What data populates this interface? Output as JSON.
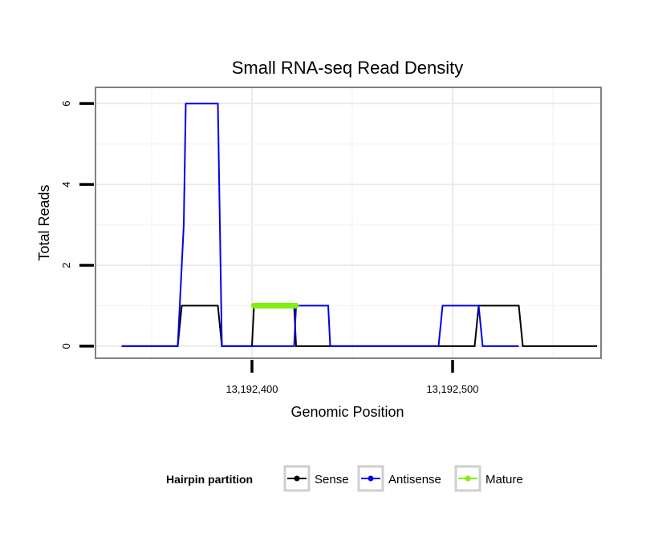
{
  "chart_data": {
    "type": "line",
    "title": "Small RNA-seq Read Density",
    "xlabel": "Genomic Position",
    "ylabel": "Total Reads",
    "xlim": [
      13192322,
      13192574
    ],
    "ylim": [
      -0.3,
      6.4
    ],
    "x_ticks": [
      {
        "value": 13192400,
        "label": "13,192,400"
      },
      {
        "value": 13192500,
        "label": "13,192,500"
      }
    ],
    "y_ticks": [
      {
        "value": 0,
        "label": "0"
      },
      {
        "value": 2,
        "label": "2"
      },
      {
        "value": 4,
        "label": "4"
      },
      {
        "value": 6,
        "label": "6"
      }
    ],
    "grid": true,
    "legend_position": "bottom",
    "legend_title": "Hairpin partition",
    "series": [
      {
        "name": "Sense",
        "color": "#000000",
        "points": [
          [
            13192335,
            0
          ],
          [
            13192363,
            0
          ],
          [
            13192365,
            1
          ],
          [
            13192383,
            1
          ],
          [
            13192385,
            0
          ],
          [
            13192400,
            0
          ],
          [
            13192401,
            1
          ],
          [
            13192421,
            1
          ],
          [
            13192422,
            0
          ],
          [
            13192511,
            0
          ],
          [
            13192513,
            1
          ],
          [
            13192533,
            1
          ],
          [
            13192535,
            0
          ],
          [
            13192572,
            0
          ]
        ]
      },
      {
        "name": "Antisense",
        "color": "#0000ee",
        "points": [
          [
            13192335,
            0
          ],
          [
            13192363,
            0
          ],
          [
            13192365,
            2
          ],
          [
            13192366,
            3
          ],
          [
            13192367,
            6
          ],
          [
            13192383,
            6
          ],
          [
            13192385,
            0
          ],
          [
            13192406,
            0
          ],
          [
            13192421,
            0
          ],
          [
            13192422,
            1
          ],
          [
            13192438,
            1
          ],
          [
            13192439,
            0
          ],
          [
            13192493,
            0
          ],
          [
            13192495,
            1
          ],
          [
            13192513,
            1
          ],
          [
            13192515,
            0
          ],
          [
            13192533,
            0
          ]
        ]
      },
      {
        "name": "Mature",
        "color": "#7fee10",
        "points": [
          [
            13192401,
            1
          ],
          [
            13192422,
            1
          ]
        ]
      }
    ]
  }
}
